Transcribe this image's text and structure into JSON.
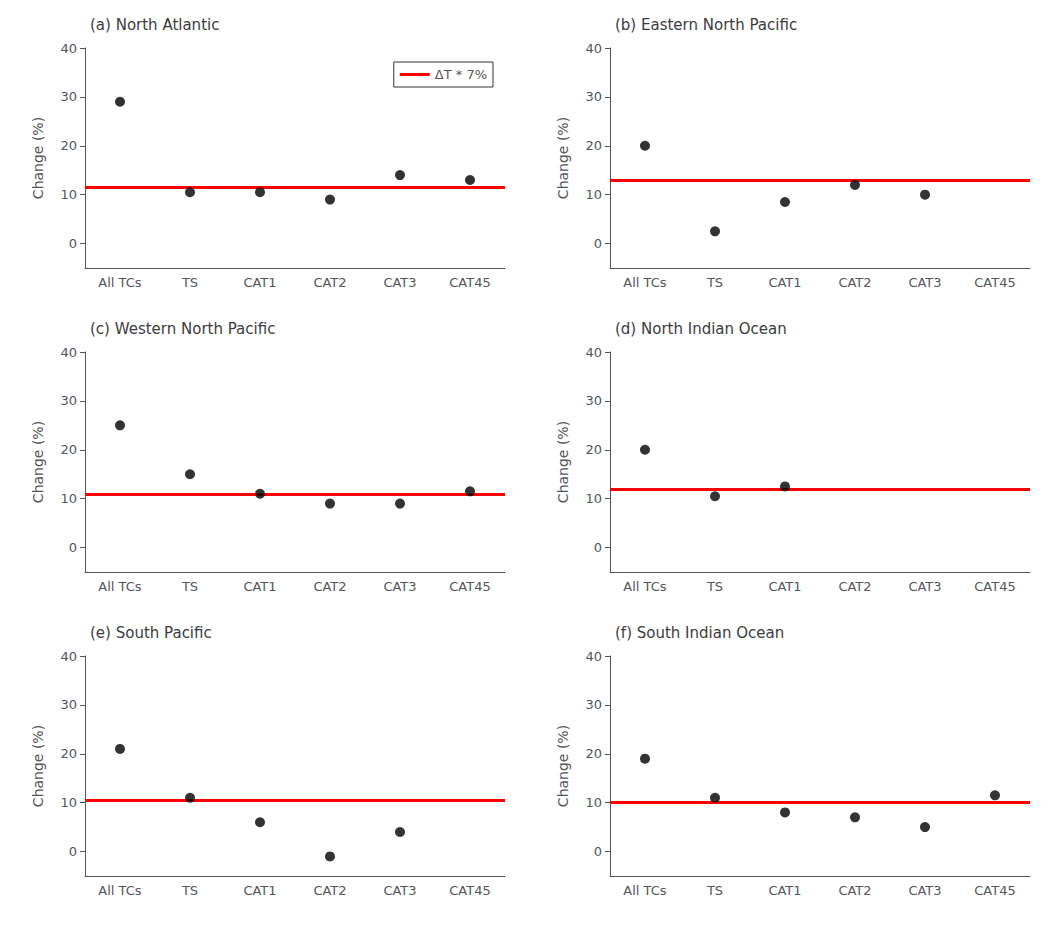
{
  "chart_data": [
    {
      "type": "scatter",
      "title": "(a) North Atlantic",
      "categories": [
        "All TCs",
        "TS",
        "CAT1",
        "CAT2",
        "CAT3",
        "CAT45"
      ],
      "values": [
        29,
        10.5,
        10.5,
        9,
        14,
        13
      ],
      "color": "#000000",
      "marker": "circle",
      "reference_line": {
        "value": 11.5,
        "color": "red",
        "name": "ΔT * 7%"
      },
      "ylabel": "Change (%)",
      "ylim": [
        -5,
        40
      ],
      "yticks": [
        0,
        10,
        20,
        30,
        40
      ],
      "grid": false,
      "legend": "upper right"
    },
    {
      "type": "scatter",
      "title": "(b) Eastern North Pacific",
      "categories": [
        "All TCs",
        "TS",
        "CAT1",
        "CAT2",
        "CAT3",
        "CAT45"
      ],
      "values": [
        20,
        2.5,
        8.5,
        12,
        10,
        null
      ],
      "color": "#000000",
      "marker": "circle",
      "reference_line": {
        "value": 13.0,
        "color": "red"
      },
      "ylabel": "Change (%)",
      "ylim": [
        -5,
        40
      ],
      "yticks": [
        0,
        10,
        20,
        30,
        40
      ],
      "grid": false
    },
    {
      "type": "scatter",
      "title": "(c) Western North Pacific",
      "categories": [
        "All TCs",
        "TS",
        "CAT1",
        "CAT2",
        "CAT3",
        "CAT45"
      ],
      "values": [
        25,
        15,
        11,
        9,
        9,
        11.5
      ],
      "color": "#000000",
      "marker": "circle",
      "reference_line": {
        "value": 11.0,
        "color": "red"
      },
      "ylabel": "Change (%)",
      "ylim": [
        -5,
        40
      ],
      "yticks": [
        0,
        10,
        20,
        30,
        40
      ],
      "grid": false
    },
    {
      "type": "scatter",
      "title": "(d) North Indian Ocean",
      "categories": [
        "All TCs",
        "TS",
        "CAT1",
        "CAT2",
        "CAT3",
        "CAT45"
      ],
      "values": [
        20,
        10.5,
        12.5,
        null,
        null,
        null
      ],
      "color": "#000000",
      "marker": "circle",
      "reference_line": {
        "value": 12.0,
        "color": "red"
      },
      "ylabel": "Change (%)",
      "ylim": [
        -5,
        40
      ],
      "yticks": [
        0,
        10,
        20,
        30,
        40
      ],
      "grid": false
    },
    {
      "type": "scatter",
      "title": "(e) South Pacific",
      "categories": [
        "All TCs",
        "TS",
        "CAT1",
        "CAT2",
        "CAT3",
        "CAT45"
      ],
      "values": [
        21,
        11,
        6,
        -1,
        4,
        null
      ],
      "color": "#000000",
      "marker": "circle",
      "reference_line": {
        "value": 10.5,
        "color": "red"
      },
      "ylabel": "Change (%)",
      "ylim": [
        -5,
        40
      ],
      "yticks": [
        0,
        10,
        20,
        30,
        40
      ],
      "grid": false
    },
    {
      "type": "scatter",
      "title": "(f) South Indian Ocean",
      "categories": [
        "All TCs",
        "TS",
        "CAT1",
        "CAT2",
        "CAT3",
        "CAT45"
      ],
      "values": [
        19,
        11,
        8,
        7,
        5,
        11.5
      ],
      "color": "#000000",
      "marker": "circle",
      "reference_line": {
        "value": 10.0,
        "color": "red"
      },
      "ylabel": "Change (%)",
      "ylim": [
        -5,
        40
      ],
      "yticks": [
        0,
        10,
        20,
        30,
        40
      ],
      "grid": false
    }
  ]
}
